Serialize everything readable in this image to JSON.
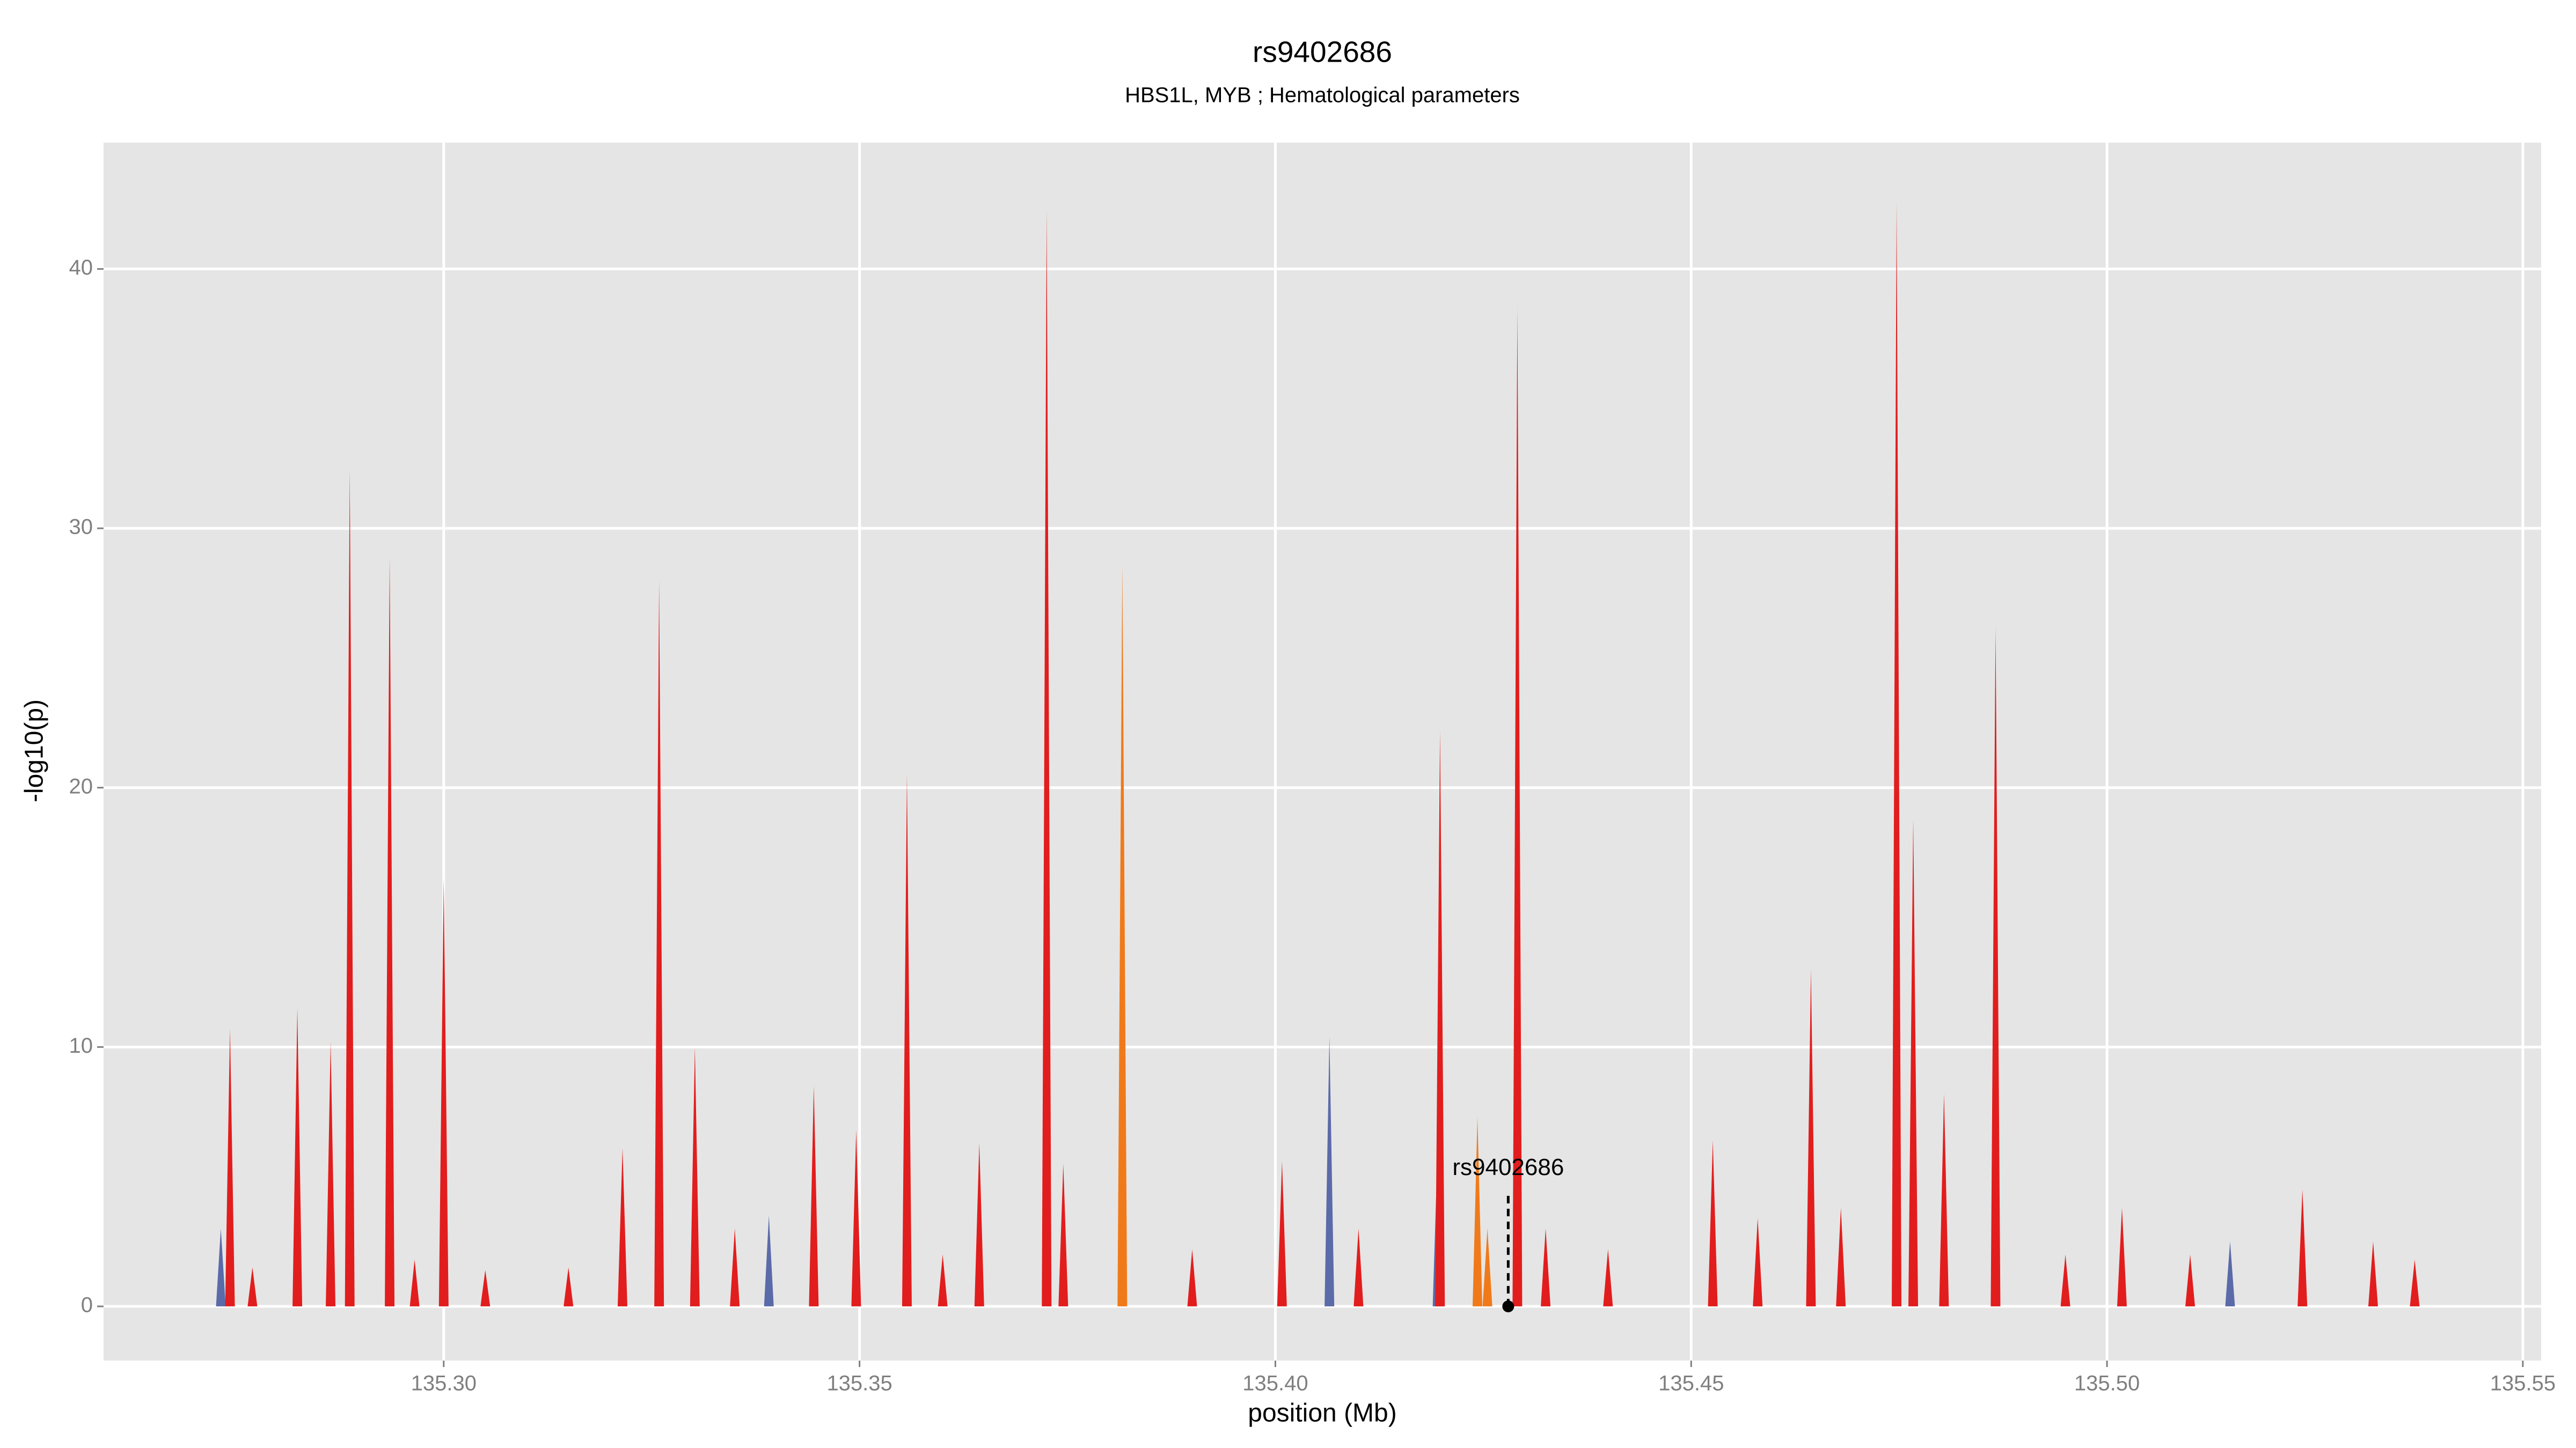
{
  "chart_data": {
    "type": "spike-area",
    "title": "rs9402686",
    "subtitle": "HBS1L, MYB ; Hematological parameters",
    "xlabel": "position (Mb)",
    "ylabel": "-log10(p)",
    "xlim": [
      135.2591,
      135.5522
    ],
    "ylim": [
      -2.09,
      44.87
    ],
    "xticks": [
      {
        "value": 135.3,
        "label": "135.30"
      },
      {
        "value": 135.35,
        "label": "135.35"
      },
      {
        "value": 135.4,
        "label": "135.40"
      },
      {
        "value": 135.45,
        "label": "135.45"
      },
      {
        "value": 135.5,
        "label": "135.50"
      },
      {
        "value": 135.55,
        "label": "135.55"
      }
    ],
    "yticks": [
      0,
      10,
      20,
      30,
      40
    ],
    "grid": true,
    "series": [
      {
        "name": "blue",
        "color": "#5b6aa8",
        "x": [
          135.2732,
          135.3391,
          135.4065,
          135.4195,
          135.5148
        ],
        "values": [
          3.0,
          3.5,
          10.4,
          6.0,
          2.5
        ]
      },
      {
        "name": "orange",
        "color": "#f07a1a",
        "x": [
          135.3816,
          135.4243,
          135.4255
        ],
        "values": [
          28.6,
          7.3,
          3.0
        ]
      },
      {
        "name": "red",
        "color": "#e21d1d",
        "x": [
          135.2743,
          135.277,
          135.2824,
          135.2864,
          135.2887,
          135.2935,
          135.2965,
          135.3,
          135.305,
          135.315,
          135.3215,
          135.3259,
          135.3302,
          135.335,
          135.3445,
          135.3496,
          135.3557,
          135.36,
          135.3644,
          135.3725,
          135.3745,
          135.39,
          135.4008,
          135.41,
          135.4198,
          135.4291,
          135.4325,
          135.44,
          135.4526,
          135.458,
          135.4644,
          135.468,
          135.4747,
          135.4767,
          135.4804,
          135.4866,
          135.495,
          135.5018,
          135.51,
          135.5235,
          135.532,
          135.537
        ],
        "values": [
          10.7,
          1.5,
          11.5,
          10.2,
          32.3,
          28.9,
          1.8,
          16.5,
          1.4,
          1.5,
          6.1,
          28.0,
          10.0,
          3.0,
          8.5,
          6.8,
          20.5,
          2.0,
          6.3,
          42.3,
          5.5,
          2.2,
          5.6,
          3.0,
          22.2,
          38.5,
          3.0,
          2.2,
          6.4,
          3.4,
          13.0,
          3.8,
          42.6,
          18.8,
          8.2,
          26.2,
          2.0,
          3.8,
          2.0,
          4.5,
          2.5,
          1.8
        ]
      }
    ],
    "annotations": [
      {
        "text": "rs9402686",
        "x": 135.428,
        "y": 0
      }
    ]
  }
}
